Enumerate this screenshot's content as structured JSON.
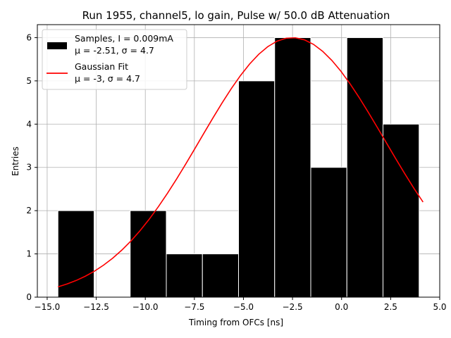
{
  "chart_data": {
    "type": "bar",
    "title": "Run 1955, channel5, lo gain, Pulse w/ 50.0 dB Attenuation",
    "xlabel": "Timing from OFCs [ns]",
    "ylabel": "Entries",
    "xlim": [
      -15.5,
      5.0
    ],
    "ylim": [
      0,
      6.3
    ],
    "xticks": [
      -15.0,
      -12.5,
      -10.0,
      -7.5,
      -5.0,
      -2.5,
      0.0,
      2.5,
      5.0
    ],
    "xtick_labels": [
      "−15.0",
      "−12.5",
      "−10.0",
      "−7.5",
      "−5.0",
      "−2.5",
      "0.0",
      "2.5",
      "5.0"
    ],
    "yticks": [
      0,
      1,
      2,
      3,
      4,
      5,
      6
    ],
    "ytick_labels": [
      "0",
      "1",
      "2",
      "3",
      "4",
      "5",
      "6"
    ],
    "grid": true,
    "legend_position": "top-left",
    "histogram": {
      "name_line1": "Samples, I = 0.009mA",
      "name_line2": "μ = -2.51, σ = 4.7",
      "color": "#000000",
      "edge_color": "#ffffff",
      "bin_edges": [
        -14.45,
        -12.61,
        -10.77,
        -8.93,
        -7.09,
        -5.25,
        -3.41,
        -1.57,
        0.27,
        2.11,
        3.95
      ],
      "counts": [
        2,
        0,
        2,
        1,
        1,
        5,
        6,
        3,
        6,
        4
      ]
    },
    "fit": {
      "name_line1": "Gaussian Fit",
      "name_line2": "μ = -3, σ = 4.7",
      "color": "#ff0000",
      "mu": -2.51,
      "sigma": 4.7,
      "amplitude": 6.0,
      "x_range": [
        -14.45,
        4.15
      ]
    }
  }
}
